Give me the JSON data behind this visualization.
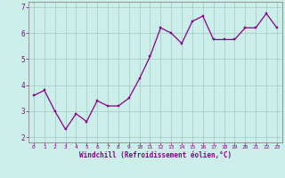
{
  "x": [
    0,
    1,
    2,
    3,
    4,
    5,
    6,
    7,
    8,
    9,
    10,
    11,
    12,
    13,
    14,
    15,
    16,
    17,
    18,
    19,
    20,
    21,
    22,
    23
  ],
  "y": [
    3.6,
    3.8,
    3.0,
    2.3,
    2.9,
    2.6,
    3.4,
    3.2,
    3.2,
    3.5,
    4.25,
    5.1,
    6.2,
    6.0,
    5.6,
    6.45,
    6.65,
    5.75,
    5.75,
    5.75,
    6.2,
    6.2,
    6.75,
    6.2
  ],
  "line_color": "#880088",
  "marker_color": "#880088",
  "bg_color": "#cceee8",
  "grid_color": "#aacccc",
  "xlabel": "Windchill (Refroidissement éolien,°C)",
  "xlabel_color": "#880088",
  "tick_color": "#880088",
  "spine_color": "#888888",
  "ylim": [
    1.8,
    7.2
  ],
  "xlim": [
    -0.5,
    23.5
  ],
  "yticks": [
    2,
    3,
    4,
    5,
    6,
    7
  ],
  "xticks": [
    0,
    1,
    2,
    3,
    4,
    5,
    6,
    7,
    8,
    9,
    10,
    11,
    12,
    13,
    14,
    15,
    16,
    17,
    18,
    19,
    20,
    21,
    22,
    23
  ]
}
